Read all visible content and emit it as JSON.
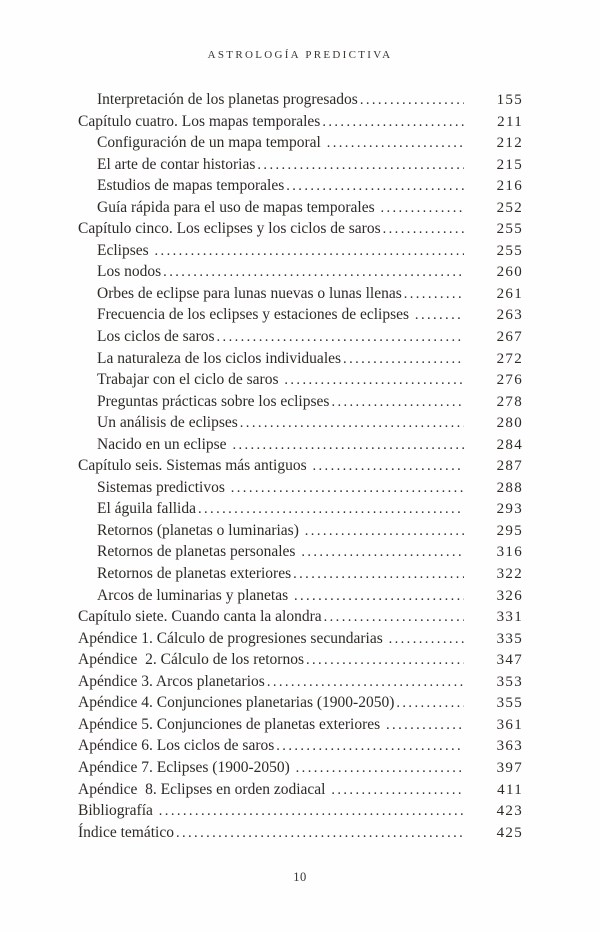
{
  "page": {
    "running_head": "ASTROLOGÍA PREDICTIVA",
    "folio_page_number": "10",
    "background_color": "#fefefe",
    "text_color": "#2d2a26"
  },
  "toc": {
    "entries": [
      {
        "label": "Interpretación de los planetas progresados",
        "page": "155",
        "indent": 1
      },
      {
        "label": "Capítulo cuatro. Los mapas temporales",
        "page": "211",
        "indent": 0
      },
      {
        "label": "Configuración de un mapa temporal ",
        "page": "212",
        "indent": 1
      },
      {
        "label": "El arte de contar historias",
        "page": "215",
        "indent": 1
      },
      {
        "label": "Estudios de mapas temporales",
        "page": "216",
        "indent": 1
      },
      {
        "label": "Guía rápida para el uso de mapas temporales ",
        "page": "252",
        "indent": 1
      },
      {
        "label": "Capítulo cinco. Los eclipses y los ciclos de saros",
        "page": "255",
        "indent": 0
      },
      {
        "label": "Eclipses ",
        "page": "255",
        "indent": 1
      },
      {
        "label": "Los nodos",
        "page": "260",
        "indent": 1
      },
      {
        "label": "Orbes de eclipse para lunas nuevas o lunas llenas",
        "page": "261",
        "indent": 1
      },
      {
        "label": "Frecuencia de los eclipses y estaciones de eclipses ",
        "page": "263",
        "indent": 1
      },
      {
        "label": "Los ciclos de saros",
        "page": "267",
        "indent": 1
      },
      {
        "label": "La naturaleza de los ciclos individuales",
        "page": "272",
        "indent": 1
      },
      {
        "label": "Trabajar con el ciclo de saros ",
        "page": "276",
        "indent": 1
      },
      {
        "label": "Preguntas prácticas sobre los eclipses",
        "page": "278",
        "indent": 1
      },
      {
        "label": "Un análisis de eclipses",
        "page": "280",
        "indent": 1
      },
      {
        "label": "Nacido en un eclipse ",
        "page": "284",
        "indent": 1
      },
      {
        "label": "Capítulo seis. Sistemas más antiguos ",
        "page": "287",
        "indent": 0
      },
      {
        "label": "Sistemas predictivos ",
        "page": "288",
        "indent": 1
      },
      {
        "label": "El águila fallida",
        "page": "293",
        "indent": 1
      },
      {
        "label": "Retornos (planetas o luminarias) ",
        "page": "295",
        "indent": 1
      },
      {
        "label": "Retornos de planetas personales ",
        "page": "316",
        "indent": 1
      },
      {
        "label": "Retornos de planetas exteriores",
        "page": "322",
        "indent": 1
      },
      {
        "label": "Arcos de luminarias y planetas ",
        "page": "326",
        "indent": 1
      },
      {
        "label": "Capítulo siete. Cuando canta la alondra",
        "page": "331",
        "indent": 0
      },
      {
        "label": "Apéndice 1. Cálculo de progresiones secundarias ",
        "page": "335",
        "indent": 0
      },
      {
        "label": "Apéndice  2. Cálculo de los retornos",
        "page": "347",
        "indent": 0
      },
      {
        "label": "Apéndice 3. Arcos planetarios",
        "page": "353",
        "indent": 0
      },
      {
        "label": "Apéndice 4. Conjunciones planetarias (1900-2050)",
        "page": "355",
        "indent": 0
      },
      {
        "label": "Apéndice 5. Conjunciones de planetas exteriores ",
        "page": "361",
        "indent": 0
      },
      {
        "label": "Apéndice 6. Los ciclos de saros",
        "page": "363",
        "indent": 0
      },
      {
        "label": "Apéndice 7. Eclipses (1900-2050) ",
        "page": "397",
        "indent": 0
      },
      {
        "label": "Apéndice  8. Eclipses en orden zodiacal ",
        "page": "411",
        "indent": 0
      },
      {
        "label": "Bibliografía ",
        "page": "423",
        "indent": 0
      },
      {
        "label": "Índice temático",
        "page": "425",
        "indent": 0
      }
    ]
  }
}
